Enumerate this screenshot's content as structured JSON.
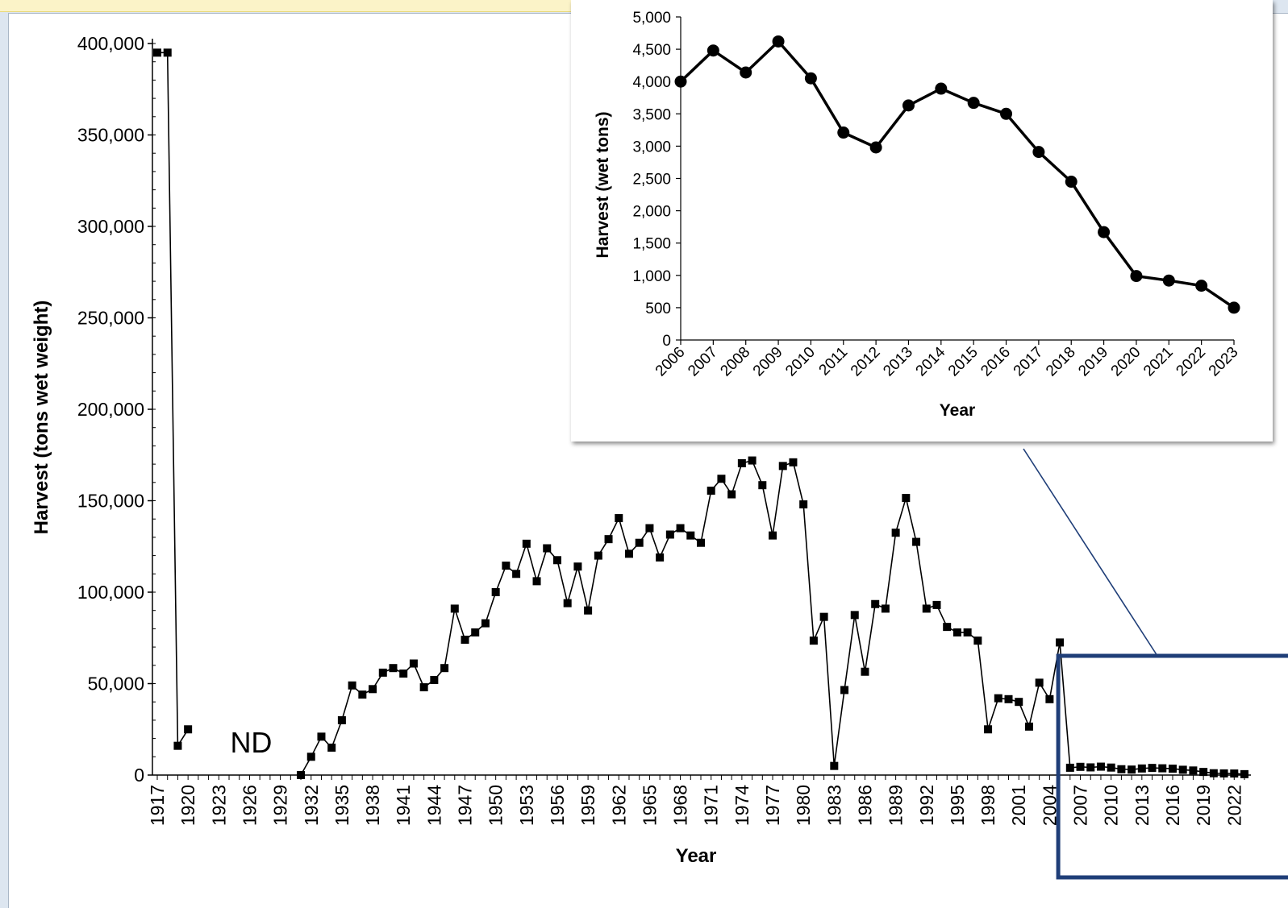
{
  "chart_data": [
    {
      "id": "main",
      "type": "line",
      "xlabel": "Year",
      "ylabel": "Harvest (tons wet weight)",
      "ylim": [
        0,
        400000
      ],
      "yticks": [
        0,
        50000,
        100000,
        150000,
        200000,
        250000,
        300000,
        350000,
        400000
      ],
      "ytick_labels": [
        "0",
        "50,000",
        "100,000",
        "150,000",
        "200,000",
        "250,000",
        "300,000",
        "350,000",
        "400,000"
      ],
      "xlim": [
        1917,
        2023
      ],
      "xtick_labels": [
        "1917",
        "1920",
        "1923",
        "1926",
        "1929",
        "1932",
        "1935",
        "1938",
        "1941",
        "1944",
        "1947",
        "1950",
        "1953",
        "1956",
        "1959",
        "1962",
        "1965",
        "1968",
        "1971",
        "1974",
        "1977",
        "1980",
        "1983",
        "1986",
        "1989",
        "1992",
        "1995",
        "1998",
        "2001",
        "2004",
        "2007",
        "2010",
        "2013",
        "2016",
        "2019",
        "2022"
      ],
      "annotation": "ND",
      "annotation_x": 1926,
      "legend": "none",
      "grid": false,
      "marker": "square",
      "line_color": "#000000",
      "highlight_box_color": "#1f3e78",
      "segments": [
        [
          [
            1917,
            395000
          ],
          [
            1918,
            395000
          ],
          [
            1919,
            16000
          ],
          [
            1920,
            25000
          ]
        ],
        [
          [
            1931,
            0
          ],
          [
            1932,
            10000
          ],
          [
            1933,
            21000
          ],
          [
            1934,
            15000
          ],
          [
            1935,
            30000
          ],
          [
            1936,
            49000
          ],
          [
            1937,
            44000
          ],
          [
            1938,
            47000
          ],
          [
            1939,
            56000
          ],
          [
            1940,
            58500
          ],
          [
            1941,
            55500
          ],
          [
            1942,
            61000
          ],
          [
            1943,
            48000
          ],
          [
            1944,
            52000
          ],
          [
            1945,
            58500
          ],
          [
            1946,
            91000
          ],
          [
            1947,
            74000
          ],
          [
            1948,
            78000
          ],
          [
            1949,
            83000
          ],
          [
            1950,
            100000
          ],
          [
            1951,
            114500
          ],
          [
            1952,
            110000
          ],
          [
            1953,
            126500
          ],
          [
            1954,
            106000
          ],
          [
            1955,
            124000
          ],
          [
            1956,
            117500
          ],
          [
            1957,
            94000
          ],
          [
            1958,
            114000
          ],
          [
            1959,
            90000
          ],
          [
            1960,
            120000
          ],
          [
            1961,
            129000
          ],
          [
            1962,
            140500
          ],
          [
            1963,
            121000
          ],
          [
            1964,
            127000
          ],
          [
            1965,
            135000
          ],
          [
            1966,
            119000
          ],
          [
            1967,
            131500
          ],
          [
            1968,
            135000
          ],
          [
            1969,
            131000
          ],
          [
            1970,
            127000
          ],
          [
            1971,
            155500
          ],
          [
            1972,
            162000
          ],
          [
            1973,
            153500
          ],
          [
            1974,
            170500
          ],
          [
            1975,
            172000
          ],
          [
            1976,
            158500
          ],
          [
            1977,
            131000
          ],
          [
            1978,
            169000
          ],
          [
            1979,
            171000
          ],
          [
            1980,
            148000
          ],
          [
            1981,
            73500
          ],
          [
            1982,
            86500
          ],
          [
            1983,
            5000
          ],
          [
            1984,
            46500
          ],
          [
            1985,
            87500
          ],
          [
            1986,
            56500
          ],
          [
            1987,
            93500
          ],
          [
            1988,
            91000
          ],
          [
            1989,
            132500
          ],
          [
            1990,
            151500
          ],
          [
            1991,
            127500
          ],
          [
            1992,
            91000
          ],
          [
            1993,
            93000
          ],
          [
            1994,
            81000
          ],
          [
            1995,
            78000
          ],
          [
            1996,
            78000
          ],
          [
            1997,
            73500
          ],
          [
            1998,
            25000
          ],
          [
            1999,
            42000
          ],
          [
            2000,
            41500
          ],
          [
            2001,
            40000
          ],
          [
            2002,
            26500
          ],
          [
            2003,
            50500
          ],
          [
            2004,
            41500
          ],
          [
            2005,
            72500
          ],
          [
            2006,
            4000
          ],
          [
            2007,
            4500
          ],
          [
            2008,
            4200
          ],
          [
            2009,
            4600
          ],
          [
            2010,
            4100
          ],
          [
            2011,
            3200
          ],
          [
            2012,
            3000
          ],
          [
            2013,
            3600
          ],
          [
            2014,
            3900
          ],
          [
            2015,
            3700
          ],
          [
            2016,
            3500
          ],
          [
            2017,
            2900
          ],
          [
            2018,
            2500
          ],
          [
            2019,
            1700
          ],
          [
            2020,
            1000
          ],
          [
            2021,
            900
          ],
          [
            2022,
            850
          ],
          [
            2023,
            500
          ]
        ]
      ]
    },
    {
      "id": "inset",
      "type": "line",
      "xlabel": "Year",
      "ylabel": "Harvest (wet tons)",
      "ylim": [
        0,
        5000
      ],
      "yticks": [
        0,
        500,
        1000,
        1500,
        2000,
        2500,
        3000,
        3500,
        4000,
        4500,
        5000
      ],
      "ytick_labels": [
        "0",
        "500",
        "1,000",
        "1,500",
        "2,000",
        "2,500",
        "3,000",
        "3,500",
        "4,000",
        "4,500",
        "5,000"
      ],
      "categories": [
        "2006",
        "2007",
        "2008",
        "2009",
        "2010",
        "2011",
        "2012",
        "2013",
        "2014",
        "2015",
        "2016",
        "2017",
        "2018",
        "2019",
        "2020",
        "2021",
        "2022",
        "2023"
      ],
      "values": [
        4000,
        4480,
        4140,
        4620,
        4050,
        3210,
        2980,
        3630,
        3890,
        3670,
        3500,
        2910,
        2450,
        1670,
        990,
        920,
        840,
        500
      ],
      "legend": "none",
      "grid": false,
      "marker": "circle",
      "line_color": "#000000"
    }
  ]
}
